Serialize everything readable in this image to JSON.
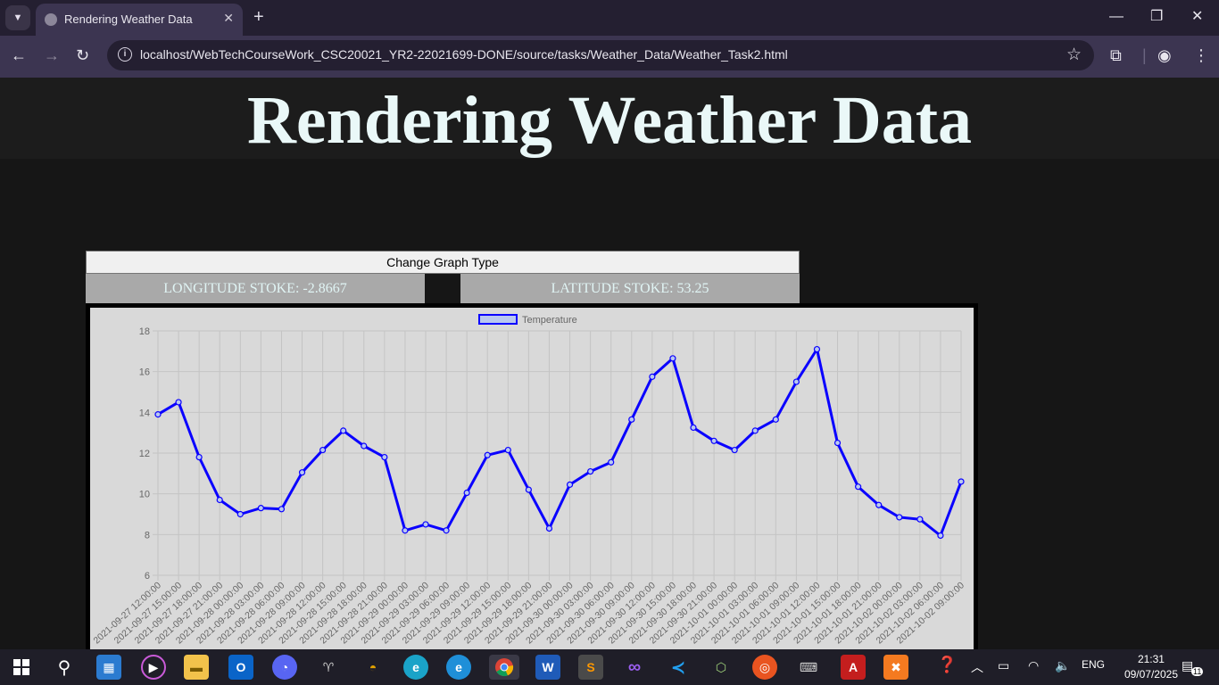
{
  "browser": {
    "tab_title": "Rendering Weather Data",
    "url": "localhost/WebTechCourseWork_CSC20021_YR2-22021699-DONE/source/tasks/Weather_Data/Weather_Task2.html"
  },
  "page": {
    "heading": "Rendering Weather Data",
    "change_button_label": "Change Graph Type",
    "longitude_text": "LONGITUDE STOKE: -2.8667",
    "latitude_text": "LATITUDE STOKE: 53.25"
  },
  "chart_data": {
    "type": "line",
    "title": "",
    "xlabel": "",
    "ylabel": "",
    "ylim": [
      6,
      18
    ],
    "yticks": [
      6,
      8,
      10,
      12,
      14,
      16,
      18
    ],
    "grid": true,
    "legend": "top-center",
    "colors": {
      "line": "#0a00ff",
      "point_fill": "#b9c8f0",
      "grid": "#c4c4c4",
      "tick": "#666666"
    },
    "categories": [
      "2021-09-27 12:00:00",
      "2021-09-27 15:00:00",
      "2021-09-27 18:00:00",
      "2021-09-27 21:00:00",
      "2021-09-28 00:00:00",
      "2021-09-28 03:00:00",
      "2021-09-28 06:00:00",
      "2021-09-28 09:00:00",
      "2021-09-28 12:00:00",
      "2021-09-28 15:00:00",
      "2021-09-28 18:00:00",
      "2021-09-28 21:00:00",
      "2021-09-29 00:00:00",
      "2021-09-29 03:00:00",
      "2021-09-29 06:00:00",
      "2021-09-29 09:00:00",
      "2021-09-29 12:00:00",
      "2021-09-29 15:00:00",
      "2021-09-29 18:00:00",
      "2021-09-29 21:00:00",
      "2021-09-30 00:00:00",
      "2021-09-30 03:00:00",
      "2021-09-30 06:00:00",
      "2021-09-30 09:00:00",
      "2021-09-30 12:00:00",
      "2021-09-30 15:00:00",
      "2021-09-30 18:00:00",
      "2021-09-30 21:00:00",
      "2021-10-01 00:00:00",
      "2021-10-01 03:00:00",
      "2021-10-01 06:00:00",
      "2021-10-01 09:00:00",
      "2021-10-01 12:00:00",
      "2021-10-01 15:00:00",
      "2021-10-01 18:00:00",
      "2021-10-01 21:00:00",
      "2021-10-02 00:00:00",
      "2021-10-02 03:00:00",
      "2021-10-02 06:00:00",
      "2021-10-02 09:00:00"
    ],
    "series": [
      {
        "name": "Temperature",
        "values": [
          13.9,
          14.5,
          11.8,
          9.7,
          9.0,
          9.3,
          9.25,
          11.05,
          12.15,
          13.1,
          12.35,
          11.8,
          8.2,
          8.5,
          8.2,
          10.05,
          11.9,
          12.15,
          10.2,
          8.3,
          10.45,
          11.1,
          11.55,
          13.65,
          15.75,
          16.65,
          13.25,
          12.6,
          12.15,
          13.1,
          13.65,
          15.5,
          17.1,
          12.5,
          10.35,
          9.45,
          8.85,
          8.75,
          7.95,
          10.6
        ]
      }
    ]
  },
  "taskbar": {
    "language": "ENG",
    "time": "21:31",
    "date": "09/07/2025",
    "notification_count": "11"
  }
}
